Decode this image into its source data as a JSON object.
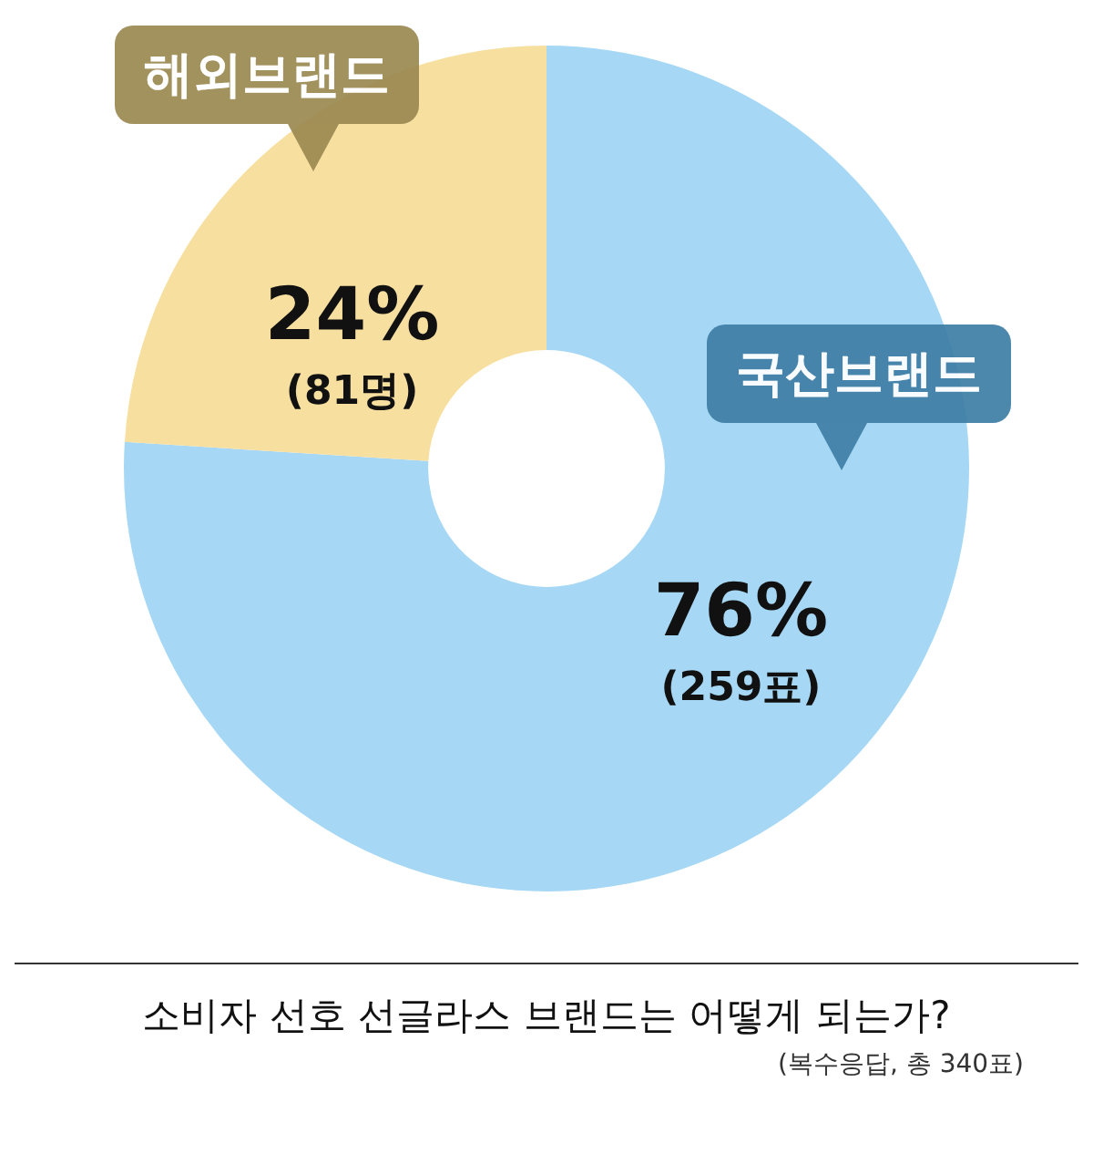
{
  "chart_data": {
    "type": "donut",
    "title": "소비자 선호 선글라스 브랜드는 어떻게 되는가?",
    "subtitle": "(복수응답, 총 340표)",
    "categories": [
      "국산브랜드",
      "해외브랜드"
    ],
    "values": [
      76,
      24
    ],
    "colors": [
      "#a6d8f5",
      "#f7dfa0"
    ],
    "value_labels": [
      "76%\n(259표)",
      "24%\n(81명)"
    ],
    "legend": false
  }
}
